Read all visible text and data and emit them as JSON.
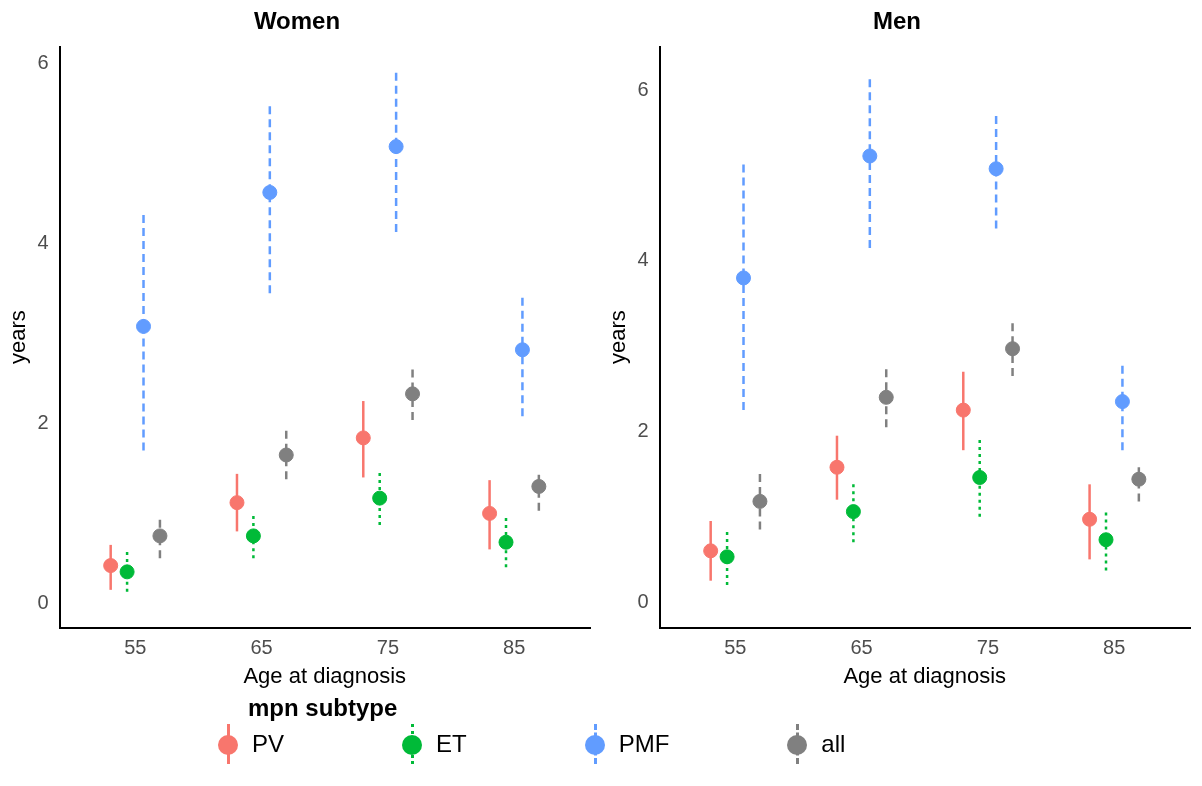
{
  "chart_data": [
    {
      "type": "scatter",
      "title": "Women",
      "xlabel": "Age at diagnosis",
      "ylabel": "years",
      "categories": [
        "55",
        "65",
        "75",
        "85"
      ],
      "ylim": [
        -0.27,
        6.19
      ],
      "yticks": [
        0,
        2,
        4,
        6
      ],
      "grid": false,
      "marker": "circle",
      "legend": "bottom",
      "legend_title": "mpn subtype",
      "series": [
        {
          "name": "PV",
          "color": "#f8766d",
          "line_style": "solid",
          "values": [
            0.42,
            1.12,
            1.84,
            1.0
          ],
          "errors": [
            [
              0.15,
              0.65
            ],
            [
              0.8,
              1.44
            ],
            [
              1.4,
              2.25
            ],
            [
              0.6,
              1.37
            ]
          ]
        },
        {
          "name": "ET",
          "color": "#00ba38",
          "line_style": "dotted",
          "values": [
            0.35,
            0.75,
            1.17,
            0.68
          ],
          "errors": [
            [
              0.13,
              0.57
            ],
            [
              0.5,
              0.97
            ],
            [
              0.87,
              1.45
            ],
            [
              0.4,
              0.95
            ]
          ]
        },
        {
          "name": "PMF",
          "color": "#619cff",
          "line_style": "dashed",
          "values": [
            3.08,
            4.57,
            5.08,
            2.82
          ],
          "errors": [
            [
              1.7,
              4.32
            ],
            [
              3.45,
              5.53
            ],
            [
              4.13,
              5.9
            ],
            [
              2.08,
              3.4
            ]
          ]
        },
        {
          "name": "all",
          "color": "#808080",
          "line_style": "dashed",
          "values": [
            0.75,
            1.65,
            2.33,
            1.3
          ],
          "errors": [
            [
              0.5,
              0.93
            ],
            [
              1.38,
              1.92
            ],
            [
              2.04,
              2.6
            ],
            [
              1.03,
              1.43
            ]
          ]
        }
      ]
    },
    {
      "type": "scatter",
      "title": "Men",
      "xlabel": "Age at diagnosis",
      "ylabel": "years",
      "categories": [
        "55",
        "65",
        "75",
        "85"
      ],
      "ylim": [
        -0.3,
        6.51
      ],
      "yticks": [
        0,
        2,
        4,
        6
      ],
      "grid": false,
      "marker": "circle",
      "legend": false,
      "series": [
        {
          "color": "#f8766d",
          "line_style": "solid",
          "values": [
            0.6,
            1.58,
            2.25,
            0.97
          ],
          "errors": [
            [
              0.25,
              0.95
            ],
            [
              1.2,
              1.95
            ],
            [
              1.78,
              2.7
            ],
            [
              0.5,
              1.38
            ]
          ]
        },
        {
          "color": "#00ba38",
          "line_style": "dotted",
          "values": [
            0.53,
            1.06,
            1.46,
            0.73
          ],
          "errors": [
            [
              0.2,
              0.82
            ],
            [
              0.7,
              1.38
            ],
            [
              1.0,
              1.9
            ],
            [
              0.37,
              1.05
            ]
          ]
        },
        {
          "color": "#619cff",
          "line_style": "dashed",
          "values": [
            3.8,
            5.23,
            5.08,
            2.35
          ],
          "errors": [
            [
              2.25,
              5.13
            ],
            [
              4.15,
              6.13
            ],
            [
              4.38,
              5.7
            ],
            [
              1.78,
              2.77
            ]
          ]
        },
        {
          "color": "#808080",
          "line_style": "dashed",
          "values": [
            1.18,
            2.4,
            2.97,
            1.44
          ],
          "errors": [
            [
              0.85,
              1.5
            ],
            [
              2.05,
              2.73
            ],
            [
              2.65,
              3.27
            ],
            [
              1.18,
              1.58
            ]
          ]
        }
      ]
    }
  ]
}
